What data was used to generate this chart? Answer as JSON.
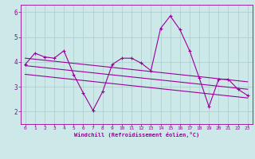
{
  "x_data": [
    0,
    1,
    2,
    3,
    4,
    5,
    6,
    7,
    8,
    9,
    10,
    11,
    12,
    13,
    14,
    15,
    16,
    17,
    18,
    19,
    20,
    21,
    22,
    23
  ],
  "y_main": [
    3.9,
    4.35,
    4.2,
    4.15,
    4.45,
    3.5,
    2.75,
    2.05,
    2.8,
    3.9,
    4.15,
    4.15,
    3.95,
    3.65,
    5.35,
    5.85,
    5.3,
    4.45,
    3.35,
    2.2,
    3.3,
    3.3,
    2.9,
    2.65
  ],
  "trend_upper_start": 4.15,
  "trend_upper_end": 3.2,
  "trend_lower_start": 3.5,
  "trend_lower_end": 2.55,
  "trend_mid_start": 3.85,
  "trend_mid_end": 2.9,
  "line_color": "#990099",
  "bg_color": "#cce8e8",
  "grid_color": "#aacccc",
  "xlabel": "Windchill (Refroidissement éolien,°C)",
  "ylim": [
    1.5,
    6.3
  ],
  "xlim": [
    -0.5,
    23.5
  ],
  "yticks": [
    2,
    3,
    4,
    5,
    6
  ],
  "xticks": [
    0,
    1,
    2,
    3,
    4,
    5,
    6,
    7,
    8,
    9,
    10,
    11,
    12,
    13,
    14,
    15,
    16,
    17,
    18,
    19,
    20,
    21,
    22,
    23
  ]
}
